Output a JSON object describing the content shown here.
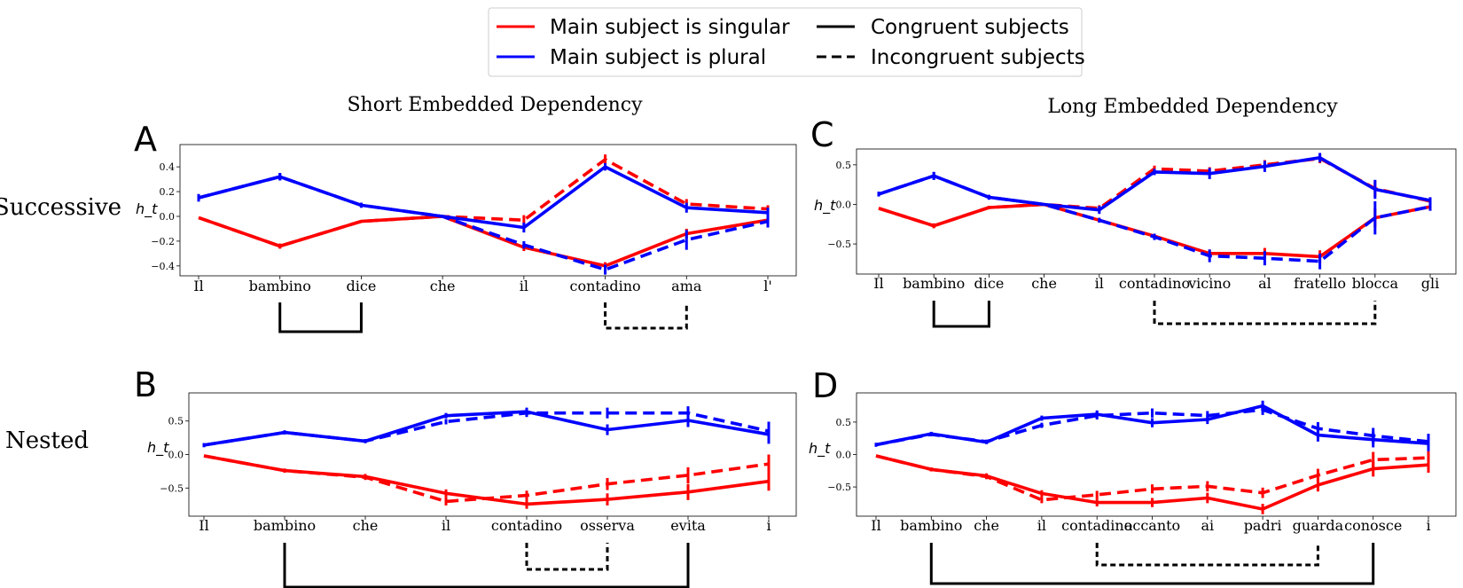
{
  "figure": {
    "legend": {
      "entries": [
        {
          "label": "Main subject is singular",
          "color": "#ff0000",
          "style": "solid"
        },
        {
          "label": "Main subject is plural",
          "color": "#0000ff",
          "style": "solid"
        },
        {
          "label": "Congruent subjects",
          "color": "#000000",
          "style": "solid"
        },
        {
          "label": "Incongruent subjects",
          "color": "#000000",
          "style": "dashed"
        }
      ]
    },
    "column_titles": [
      "Short Embedded Dependency",
      "Long Embedded Dependency"
    ],
    "row_labels": [
      "Successive",
      "Nested"
    ]
  },
  "chart_data": [
    {
      "panel": "A",
      "type": "line",
      "ylabel": "h_t",
      "ylim": [
        -0.48,
        0.58
      ],
      "yticks": [
        -0.4,
        -0.2,
        0.0,
        0.2,
        0.4
      ],
      "ytick_labels": [
        "−0.4",
        "−0.2",
        "0.0",
        "0.2",
        "0.4"
      ],
      "categories": [
        "Il",
        "bambino",
        "dice",
        "che",
        "il",
        "contadino",
        "ama",
        "l'"
      ],
      "series": [
        {
          "color": "red",
          "style": "solid",
          "values": [
            -0.01,
            -0.24,
            -0.04,
            0.0,
            -0.25,
            -0.4,
            -0.14,
            -0.03
          ],
          "err": [
            0,
            0.02,
            0.01,
            0,
            0.03,
            0.03,
            0.04,
            0.03
          ]
        },
        {
          "color": "red",
          "style": "dashed",
          "values": [
            -0.01,
            -0.24,
            -0.04,
            0.0,
            -0.03,
            0.46,
            0.1,
            0.06
          ],
          "err": [
            0,
            0.02,
            0.01,
            0,
            0.04,
            0.04,
            0.04,
            0.03
          ]
        },
        {
          "color": "blue",
          "style": "solid",
          "values": [
            0.15,
            0.32,
            0.09,
            0.0,
            -0.09,
            0.4,
            0.07,
            0.03
          ],
          "err": [
            0.03,
            0.03,
            0.02,
            0,
            0.04,
            0.03,
            0.04,
            0.04
          ]
        },
        {
          "color": "blue",
          "style": "dashed",
          "values": [
            0.15,
            0.32,
            0.09,
            0.0,
            -0.23,
            -0.43,
            -0.19,
            -0.04
          ],
          "err": [
            0.03,
            0.03,
            0.02,
            0,
            0.03,
            0.04,
            0.08,
            0.05
          ]
        }
      ],
      "brackets": [
        {
          "from": "bambino",
          "to": "dice",
          "style": "solid"
        },
        {
          "from": "contadino",
          "to": "ama",
          "style": "dashed"
        }
      ]
    },
    {
      "panel": "B",
      "type": "line",
      "ylabel": "h_t",
      "ylim": [
        -0.92,
        0.92
      ],
      "yticks": [
        -0.5,
        0.0,
        0.5
      ],
      "ytick_labels": [
        "−0.5",
        "0.0",
        "0.5"
      ],
      "categories": [
        "Il",
        "bambino",
        "che",
        "il",
        "contadino",
        "osserva",
        "evita",
        "i"
      ],
      "series": [
        {
          "color": "red",
          "style": "solid",
          "values": [
            -0.02,
            -0.24,
            -0.33,
            -0.58,
            -0.74,
            -0.67,
            -0.56,
            -0.4
          ],
          "err": [
            0,
            0.03,
            0.04,
            0.06,
            0.07,
            0.09,
            0.12,
            0.14
          ]
        },
        {
          "color": "red",
          "style": "dashed",
          "values": [
            -0.02,
            -0.24,
            -0.34,
            -0.7,
            -0.61,
            -0.44,
            -0.31,
            -0.14
          ],
          "err": [
            0,
            0.03,
            0.04,
            0.06,
            0.07,
            0.09,
            0.12,
            0.14
          ]
        },
        {
          "color": "blue",
          "style": "solid",
          "values": [
            0.14,
            0.33,
            0.2,
            0.58,
            0.64,
            0.37,
            0.51,
            0.3
          ],
          "err": [
            0.03,
            0.03,
            0.03,
            0.04,
            0.06,
            0.08,
            0.1,
            0.14
          ]
        },
        {
          "color": "blue",
          "style": "dashed",
          "values": [
            0.14,
            0.33,
            0.2,
            0.49,
            0.62,
            0.62,
            0.62,
            0.35
          ],
          "err": [
            0.03,
            0.03,
            0.03,
            0.04,
            0.06,
            0.08,
            0.1,
            0.14
          ]
        }
      ],
      "brackets": [
        {
          "from": "bambino",
          "to": "evita",
          "style": "solid"
        },
        {
          "from": "contadino",
          "to": "osserva",
          "style": "dashed"
        }
      ]
    },
    {
      "panel": "C",
      "type": "line",
      "ylabel": "h_t",
      "ylim": [
        -0.88,
        0.7
      ],
      "yticks": [
        -0.5,
        0.0,
        0.5
      ],
      "ytick_labels": [
        "−0.5",
        "0.0",
        "0.5"
      ],
      "categories": [
        "Il",
        "bambino",
        "dice",
        "che",
        "il",
        "contadino",
        "vicino",
        "al",
        "fratello",
        "blocca",
        "gli"
      ],
      "series": [
        {
          "color": "red",
          "style": "solid",
          "values": [
            -0.05,
            -0.27,
            -0.04,
            0.0,
            -0.2,
            -0.4,
            -0.62,
            -0.62,
            -0.66,
            -0.17,
            -0.03
          ],
          "err": [
            0,
            0.03,
            0.02,
            0,
            0.03,
            0.03,
            0.05,
            0.07,
            0.08,
            0.12,
            0.05
          ]
        },
        {
          "color": "red",
          "style": "dashed",
          "values": [
            -0.05,
            -0.27,
            -0.04,
            0.0,
            -0.05,
            0.45,
            0.42,
            0.5,
            0.58,
            0.2,
            0.04
          ],
          "err": [
            0,
            0.03,
            0.02,
            0,
            0.04,
            0.04,
            0.05,
            0.06,
            0.06,
            0.1,
            0.05
          ]
        },
        {
          "color": "blue",
          "style": "solid",
          "values": [
            0.13,
            0.36,
            0.09,
            0.0,
            -0.07,
            0.41,
            0.39,
            0.48,
            0.59,
            0.19,
            0.05
          ],
          "err": [
            0.03,
            0.05,
            0.03,
            0,
            0.05,
            0.04,
            0.07,
            0.07,
            0.06,
            0.12,
            0.04
          ]
        },
        {
          "color": "blue",
          "style": "dashed",
          "values": [
            0.13,
            0.36,
            0.09,
            0.0,
            -0.2,
            -0.41,
            -0.65,
            -0.68,
            -0.72,
            -0.17,
            -0.03
          ],
          "err": [
            0.03,
            0.05,
            0.03,
            0,
            0.03,
            0.04,
            0.08,
            0.09,
            0.1,
            0.21,
            0.05
          ]
        }
      ],
      "brackets": [
        {
          "from": "bambino",
          "to": "dice",
          "style": "solid"
        },
        {
          "from": "contadino",
          "to": "blocca",
          "style": "dashed"
        }
      ]
    },
    {
      "panel": "D",
      "type": "line",
      "ylabel": "h_t",
      "ylim": [
        -0.95,
        0.95
      ],
      "yticks": [
        -0.5,
        0.0,
        0.5
      ],
      "ytick_labels": [
        "−0.5",
        "0.0",
        "0.5"
      ],
      "categories": [
        "Il",
        "bambino",
        "che",
        "il",
        "contadino",
        "accanto",
        "ai",
        "padri",
        "guarda",
        "conosce",
        "i"
      ],
      "series": [
        {
          "color": "red",
          "style": "solid",
          "values": [
            -0.02,
            -0.23,
            -0.33,
            -0.6,
            -0.74,
            -0.74,
            -0.67,
            -0.84,
            -0.47,
            -0.22,
            -0.16
          ],
          "err": [
            0,
            0.03,
            0.04,
            0.05,
            0.06,
            0.07,
            0.08,
            0.08,
            0.1,
            0.12,
            0.12
          ]
        },
        {
          "color": "red",
          "style": "dashed",
          "values": [
            -0.02,
            -0.23,
            -0.34,
            -0.7,
            -0.62,
            -0.53,
            -0.49,
            -0.59,
            -0.32,
            -0.08,
            -0.05
          ],
          "err": [
            0,
            0.03,
            0.04,
            0.05,
            0.06,
            0.07,
            0.08,
            0.08,
            0.1,
            0.12,
            0.1
          ]
        },
        {
          "color": "blue",
          "style": "solid",
          "values": [
            0.15,
            0.32,
            0.19,
            0.56,
            0.62,
            0.49,
            0.54,
            0.75,
            0.3,
            0.23,
            0.17
          ],
          "err": [
            0.03,
            0.03,
            0.03,
            0.04,
            0.06,
            0.07,
            0.07,
            0.08,
            0.1,
            0.12,
            0.12
          ]
        },
        {
          "color": "blue",
          "style": "dashed",
          "values": [
            0.15,
            0.31,
            0.2,
            0.45,
            0.6,
            0.64,
            0.6,
            0.69,
            0.4,
            0.29,
            0.2
          ],
          "err": [
            0.03,
            0.03,
            0.03,
            0.04,
            0.06,
            0.07,
            0.07,
            0.08,
            0.1,
            0.12,
            0.12
          ]
        }
      ],
      "brackets": [
        {
          "from": "bambino",
          "to": "conosce",
          "style": "solid"
        },
        {
          "from": "contadino",
          "to": "guarda",
          "style": "dashed"
        }
      ]
    }
  ]
}
